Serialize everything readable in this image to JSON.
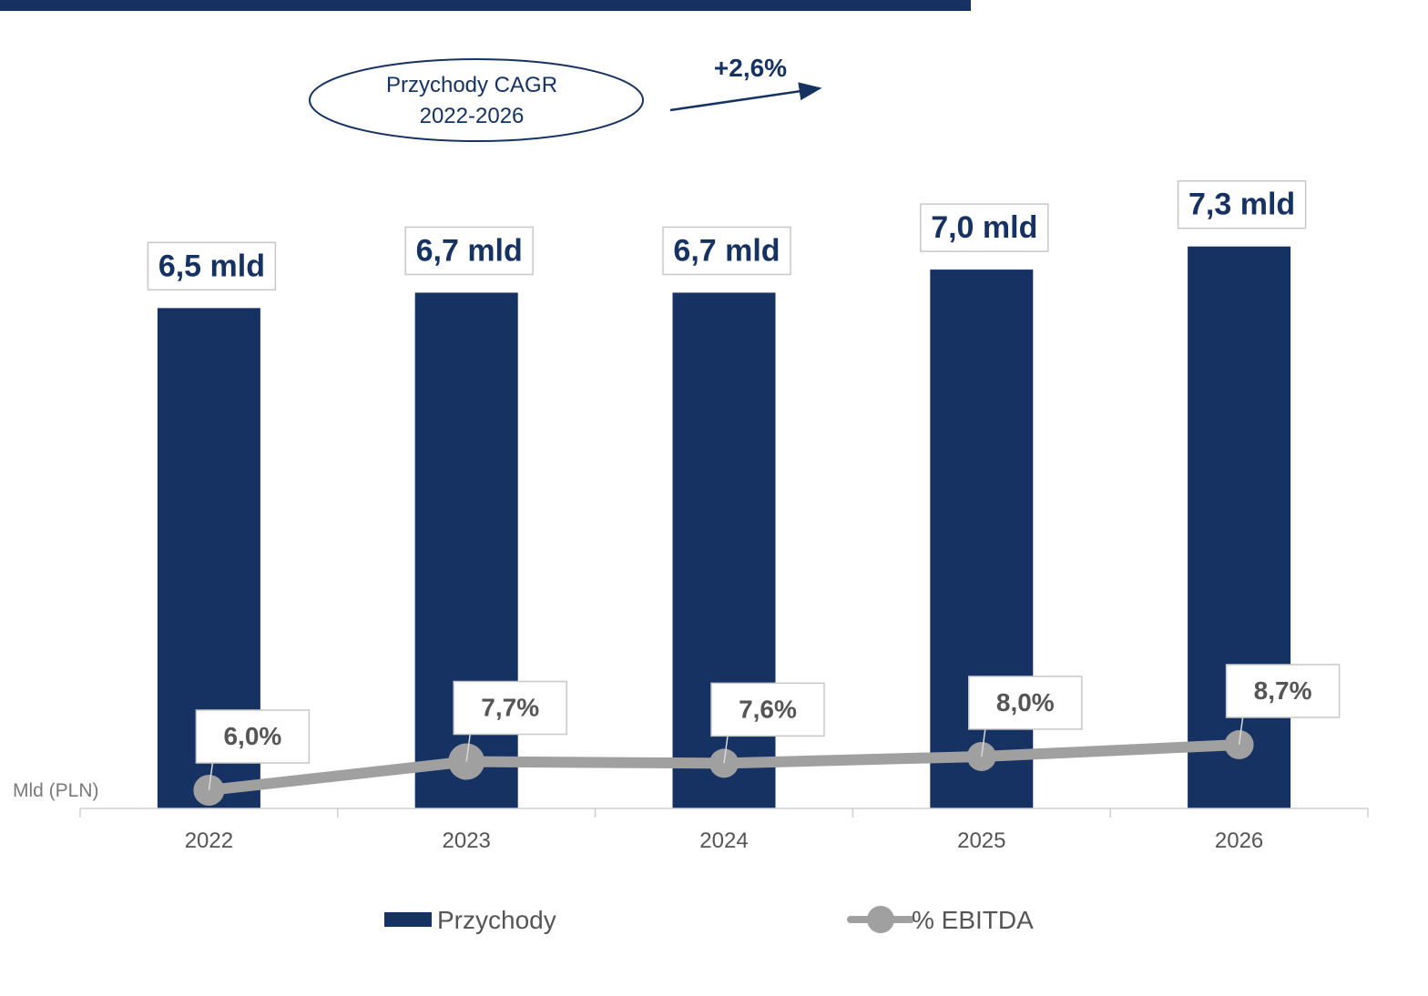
{
  "colors": {
    "bar": "#163263",
    "line": "#a0a0a0",
    "header_band": "#163263",
    "label_text": "#163263",
    "pct_text": "#555555",
    "axis_text": "#555555",
    "box_border": "#c8c8c8"
  },
  "cagr": {
    "label_line1": "Przychody CAGR",
    "label_line2": "2022-2026",
    "value": "+2,6%"
  },
  "chart_data": {
    "type": "bar",
    "categories": [
      "2022",
      "2023",
      "2024",
      "2025",
      "2026"
    ],
    "y_unit_label": "Mld (PLN)",
    "ylim": [
      0,
      7.9
    ],
    "grid": false,
    "legend_position": "bottom",
    "series": [
      {
        "name": "Przychody",
        "type": "bar",
        "values": [
          6.5,
          6.7,
          6.7,
          7.0,
          7.3
        ],
        "labels": [
          "6,5 mld",
          "6,7 mld",
          "6,7 mld",
          "7,0 mld",
          "7,3 mld"
        ]
      },
      {
        "name": "% EBITDA",
        "type": "line",
        "values": [
          6.0,
          7.7,
          7.6,
          8.0,
          8.7
        ],
        "labels": [
          "6,0%",
          "7,7%",
          "7,6%",
          "8,0%",
          "8,7%"
        ]
      }
    ]
  }
}
